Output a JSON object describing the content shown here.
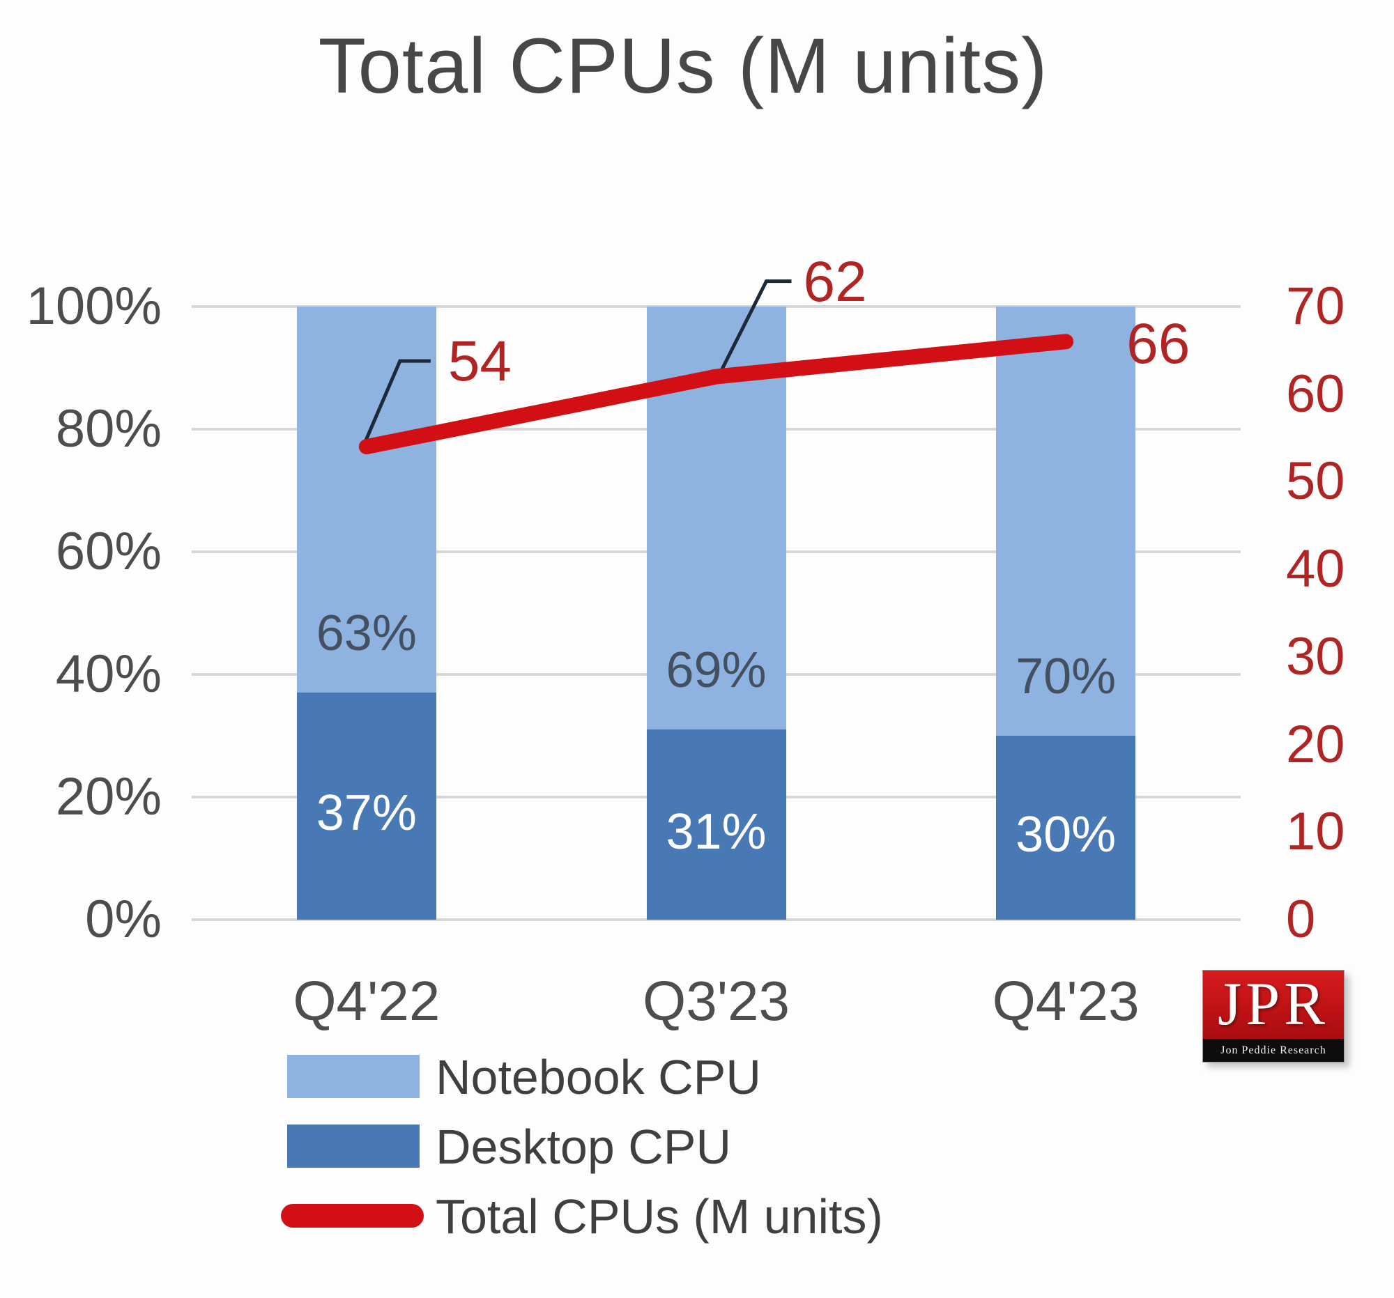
{
  "title": "Total CPUs (M units)",
  "colors": {
    "notebook": "#8FB3E1",
    "desktop": "#4879B4",
    "line": "#D20F14",
    "grid": "#D7D7D7",
    "axis_text": "#4D4D4D",
    "red_text": "#B02424",
    "bar_label_dark": "#445060",
    "bar_label_light": "#FFFFFF",
    "leader": "#1B2A38"
  },
  "chart_data": {
    "type": "bar+line",
    "title": "Total CPUs (M units)",
    "categories": [
      "Q4'22",
      "Q3'23",
      "Q4'23"
    ],
    "stacked_percent": true,
    "grid": true,
    "legend_position": "bottom-left",
    "series": [
      {
        "name": "Notebook CPU",
        "type": "bar",
        "axis": "left",
        "values": [
          63,
          69,
          70
        ],
        "labels": [
          "63%",
          "69%",
          "70%"
        ]
      },
      {
        "name": "Desktop CPU",
        "type": "bar",
        "axis": "left",
        "values": [
          37,
          31,
          30
        ],
        "labels": [
          "37%",
          "31%",
          "30%"
        ]
      },
      {
        "name": "Total CPUs (M units)",
        "type": "line",
        "axis": "right",
        "values": [
          54,
          62,
          66
        ]
      }
    ],
    "left_axis": {
      "min": 0,
      "max": 100,
      "ticks": [
        "100%",
        "80%",
        "60%",
        "40%",
        "20%",
        "0%"
      ]
    },
    "right_axis": {
      "min": 0,
      "max": 70,
      "ticks": [
        "70",
        "60",
        "50",
        "40",
        "30",
        "20",
        "10",
        "0"
      ]
    }
  },
  "logo": {
    "text": "JPR",
    "subtext": "Jon Peddie Research"
  }
}
